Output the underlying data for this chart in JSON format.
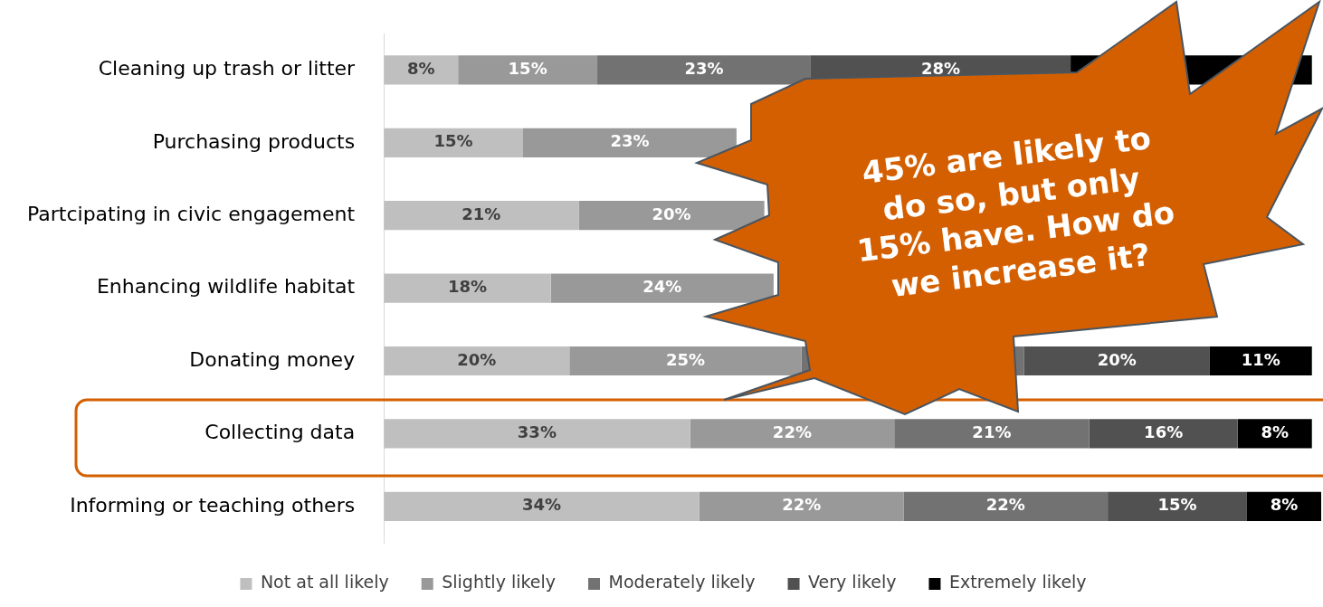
{
  "chart_data": {
    "type": "bar",
    "orientation": "horizontal",
    "stacked": true,
    "legend": "bottom",
    "categories": [
      "Cleaning up trash or litter",
      "Purchasing products",
      "Partcipating in civic engagement",
      "Enhancing wildlife habitat",
      "Donating money",
      "Collecting data",
      "Informing or teaching others"
    ],
    "series": [
      {
        "name": "Not at all likely",
        "color": "#bfbfbf",
        "values": [
          8,
          15,
          21,
          18,
          20,
          33,
          34
        ],
        "value_labels": [
          "8%",
          "15%",
          "21%",
          "18%",
          "20%",
          "33%",
          "34%"
        ]
      },
      {
        "name": "Slightly likely",
        "color": "#999999",
        "values": [
          15,
          23,
          20,
          24,
          25,
          22,
          22
        ],
        "value_labels": [
          "15%",
          "23%",
          "20%",
          "24%",
          "25%",
          "22%",
          "22%"
        ]
      },
      {
        "name": "Moderately likely",
        "color": "#727272",
        "values": [
          23,
          null,
          null,
          null,
          24,
          21,
          22
        ],
        "value_labels": [
          "23%",
          null,
          null,
          null,
          null,
          "21%",
          "22%"
        ]
      },
      {
        "name": "Very likely",
        "color": "#515151",
        "values": [
          28,
          null,
          null,
          null,
          20,
          16,
          15
        ],
        "value_labels": [
          "28%",
          null,
          null,
          null,
          "20%",
          "16%",
          "15%"
        ]
      },
      {
        "name": "Extremely likely",
        "color": "#000000",
        "values": [
          26,
          null,
          null,
          null,
          11,
          8,
          8
        ],
        "value_labels": [
          null,
          null,
          null,
          null,
          "11%",
          "8%",
          "8%"
        ]
      }
    ],
    "annotations": [
      "45% are likely to do so, but only 15% have. How do we increase it?"
    ]
  }
}
